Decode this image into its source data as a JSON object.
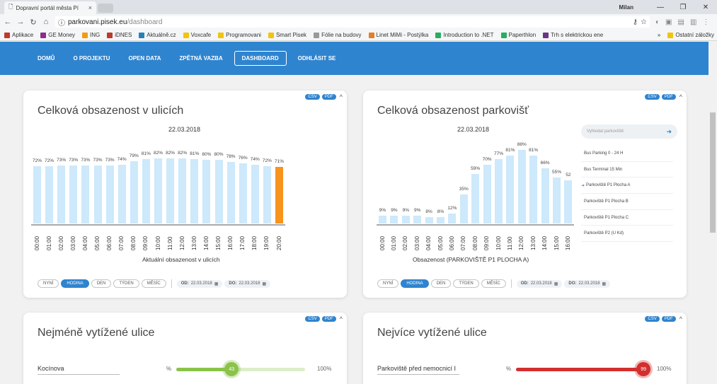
{
  "browser": {
    "tab_title": "Dopravní portál města Pí",
    "tab_close": "×",
    "user": "Milan",
    "win_min": "—",
    "win_max": "❐",
    "win_close": "✕",
    "url_host": "parkovani.pisek.eu",
    "url_path": "/dashboard",
    "bookmarks": [
      {
        "label": "Aplikace",
        "color": "#c0392b"
      },
      {
        "label": "GE Money",
        "color": "#8e2b8e"
      },
      {
        "label": "ING",
        "color": "#f39c12"
      },
      {
        "label": "iDNES",
        "color": "#c0392b"
      },
      {
        "label": "Aktuálně.cz",
        "color": "#2980b9"
      },
      {
        "label": "Voxcafe",
        "color": "#f1c40f"
      },
      {
        "label": "Programovani",
        "color": "#f1c40f"
      },
      {
        "label": "Smart Pisek",
        "color": "#f1c40f"
      },
      {
        "label": "Fólie na budovy",
        "color": "#999999"
      },
      {
        "label": "Linet MiMi - Postýlka",
        "color": "#e67e22"
      },
      {
        "label": "Introduction to .NET",
        "color": "#27ae60"
      },
      {
        "label": "Paperthlon",
        "color": "#27ae60"
      },
      {
        "label": "Trh s elektrickou ene",
        "color": "#6c3483"
      }
    ],
    "bookmarks_more": "»",
    "bookmarks_other": "Ostatní záložky"
  },
  "nav": {
    "items": [
      "DOMŮ",
      "O PROJEKTU",
      "OPEN DATA",
      "ZPĚTNÁ VAZBA",
      "DASHBOARD",
      "ODHLÁSIT SE"
    ],
    "active_index": 4
  },
  "tools": {
    "csv": "CSV",
    "pdf": "PDF",
    "collapse": "^"
  },
  "card1": {
    "title": "Celková obsazenost v ulicích",
    "date": "22.03.2018",
    "xtitle": "Aktuální obsazenost v ulicích",
    "highlight_index": 20
  },
  "card2": {
    "title": "Celková obsazenost parkovišť",
    "date": "22.03.2018",
    "xtitle": "Obsazenost (PARKOVIŠTĚ P1 PLOCHA A)",
    "search_placeholder": "Vyhledat parkoviště",
    "search_arrow": "➜",
    "parkings": [
      "Bus Parking 0 - 24 H",
      "Bus Terminal 15 Min",
      "Parkoviště P1 Plocha A",
      "Parkoviště P1 Plocha B",
      "Parkoviště P1 Plocha C",
      "Parkoviště P2 (U Kd)"
    ],
    "selected_index": 2,
    "selected_marker": "➜"
  },
  "controls": {
    "buttons": [
      "NYNÍ",
      "HODINA",
      "DEN",
      "TÝDEN",
      "MĚSÍC"
    ],
    "active_index": 1,
    "from_label": "OD:",
    "from_value": "22.03.2018",
    "to_label": "DO:",
    "to_value": "22.03.2018",
    "cal_icon": "▦"
  },
  "card3": {
    "title": "Nejméně vytížené ulice",
    "row_name": "Kocínova",
    "pct_sym": "%",
    "value": 43,
    "value_label": "43",
    "max_label": "100%",
    "color": "#8bc34a"
  },
  "card4": {
    "title": "Nejvíce vytížené ulice",
    "row_name": "Parkoviště před nemocnicí I",
    "pct_sym": "%",
    "value": 99,
    "value_label": "99",
    "max_label": "100%",
    "color": "#d32f2f"
  },
  "chart_data": [
    {
      "type": "bar",
      "title": "Celková obsazenost v ulicích",
      "subtitle": "22.03.2018",
      "xlabel": "Aktuální obsazenost v ulicích",
      "ylabel": "",
      "ylim": [
        0,
        100
      ],
      "categories": [
        "00:00",
        "01:00",
        "02:00",
        "03:00",
        "04:00",
        "05:00",
        "06:00",
        "07:00",
        "08:00",
        "09:00",
        "10:00",
        "11:00",
        "12:00",
        "13:00",
        "14:00",
        "15:00",
        "16:00",
        "17:00",
        "18:00",
        "19:00",
        "20:00"
      ],
      "values": [
        72,
        72,
        73,
        73,
        73,
        73,
        73,
        74,
        79,
        81,
        82,
        82,
        82,
        81,
        80,
        80,
        78,
        76,
        74,
        72,
        71
      ],
      "labels": [
        "72%",
        "72%",
        "73%",
        "73%",
        "73%",
        "73%",
        "73%",
        "74%",
        "79%",
        "81%",
        "82%",
        "82%",
        "82%",
        "81%",
        "80%",
        "80%",
        "78%",
        "76%",
        "74%",
        "72%",
        "71%"
      ],
      "highlight_color": "#f7941d",
      "bar_color": "#cde9fb"
    },
    {
      "type": "bar",
      "title": "Celková obsazenost parkovišť",
      "subtitle": "22.03.2018",
      "xlabel": "Obsazenost (PARKOVIŠTĚ P1 PLOCHA A)",
      "ylabel": "",
      "ylim": [
        0,
        100
      ],
      "categories": [
        "00:00",
        "01:00",
        "02:00",
        "03:00",
        "04:00",
        "05:00",
        "06:00",
        "07:00",
        "08:00",
        "09:00",
        "10:00",
        "11:00",
        "12:00",
        "13:00",
        "14:00",
        "15:00",
        "16:00"
      ],
      "values": [
        9,
        9,
        9,
        9,
        8,
        8,
        12,
        35,
        59,
        70,
        77,
        81,
        88,
        81,
        66,
        55,
        52
      ],
      "labels": [
        "9%",
        "9%",
        "9%",
        "9%",
        "8%",
        "8%",
        "12%",
        "35%",
        "59%",
        "70%",
        "77%",
        "81%",
        "88%",
        "81%",
        "66%",
        "55%",
        "52"
      ],
      "bar_color": "#cde9fb"
    }
  ]
}
